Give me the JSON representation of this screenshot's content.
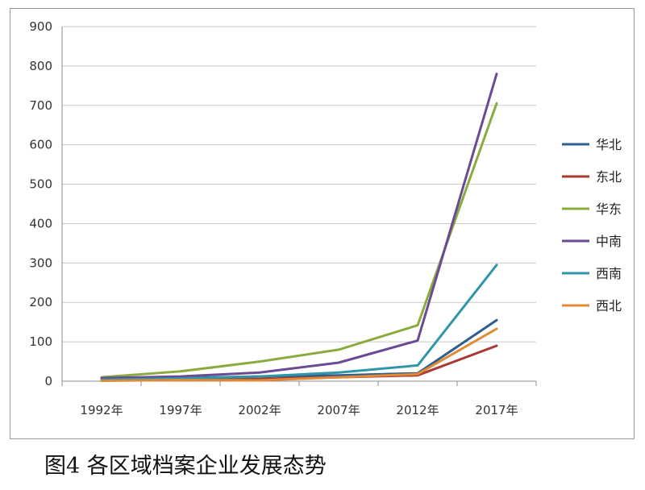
{
  "caption": "图4 各区域档案企业发展态势",
  "chart_data": {
    "type": "line",
    "title": "",
    "xlabel": "",
    "ylabel": "",
    "categories": [
      "1992年",
      "1997年",
      "2002年",
      "2007年",
      "2012年",
      "2017年"
    ],
    "ylim": [
      0,
      900
    ],
    "yticks": [
      0,
      100,
      200,
      300,
      400,
      500,
      600,
      700,
      800,
      900
    ],
    "grid": true,
    "legend_position": "right",
    "series": [
      {
        "name": "华北",
        "color": "#2e5d8f",
        "values": [
          5,
          8,
          12,
          15,
          20,
          155
        ]
      },
      {
        "name": "东北",
        "color": "#a93a33",
        "values": [
          2,
          4,
          6,
          10,
          15,
          90
        ]
      },
      {
        "name": "华东",
        "color": "#8aac3f",
        "values": [
          10,
          25,
          50,
          80,
          142,
          705
        ]
      },
      {
        "name": "中南",
        "color": "#6a4a93",
        "values": [
          8,
          12,
          22,
          47,
          103,
          780
        ]
      },
      {
        "name": "西南",
        "color": "#2f96a8",
        "values": [
          4,
          7,
          12,
          22,
          40,
          295
        ]
      },
      {
        "name": "西北",
        "color": "#e08a36",
        "values": [
          1,
          3,
          2,
          10,
          18,
          133
        ]
      }
    ]
  }
}
